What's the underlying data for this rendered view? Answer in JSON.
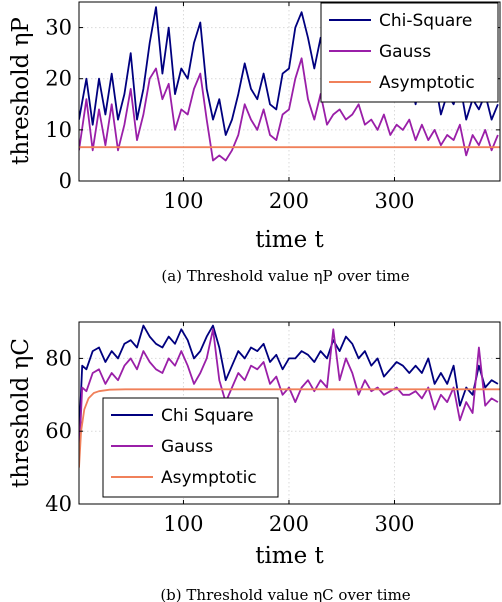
{
  "chart_data": [
    {
      "type": "line",
      "caption": "(a)  Threshold value ηP  over time",
      "xlabel": "time t",
      "ylabel": "threshold ηP",
      "xlim": [
        1,
        400
      ],
      "ylim": [
        0,
        35
      ],
      "xticks": [
        100,
        200,
        300
      ],
      "yticks": [
        0,
        10,
        20,
        30
      ],
      "grid": true,
      "legend_position": "top-right",
      "series": [
        {
          "name": "Chi-Square",
          "color": "#00007f",
          "x": [
            1,
            8,
            14,
            20,
            26,
            32,
            38,
            44,
            50,
            56,
            62,
            68,
            74,
            80,
            86,
            92,
            98,
            104,
            110,
            116,
            122,
            128,
            134,
            140,
            146,
            152,
            158,
            164,
            170,
            176,
            182,
            188,
            194,
            200,
            206,
            212,
            218,
            224,
            230,
            236,
            242,
            248,
            254,
            260,
            266,
            272,
            278,
            284,
            290,
            296,
            302,
            308,
            314,
            320,
            326,
            332,
            338,
            344,
            350,
            356,
            362,
            368,
            374,
            380,
            386,
            392,
            398
          ],
          "y": [
            12,
            20,
            11,
            20,
            13,
            21,
            12,
            17,
            25,
            12,
            18,
            27,
            34,
            21,
            30,
            17,
            22,
            20,
            27,
            31,
            18,
            12,
            16,
            9,
            12,
            17,
            23,
            18,
            16,
            21,
            15,
            14,
            21,
            22,
            30,
            33,
            28,
            22,
            28,
            25,
            28,
            24,
            27,
            22,
            24,
            20,
            24,
            19,
            22,
            17,
            20,
            19,
            21,
            15,
            21,
            16,
            20,
            13,
            17,
            15,
            19,
            12,
            16,
            14,
            17,
            12,
            15
          ]
        },
        {
          "name": "Gauss",
          "color": "#9a1fa8",
          "x": [
            1,
            8,
            14,
            20,
            26,
            32,
            38,
            44,
            50,
            56,
            62,
            68,
            74,
            80,
            86,
            92,
            98,
            104,
            110,
            116,
            122,
            128,
            134,
            140,
            146,
            152,
            158,
            164,
            170,
            176,
            182,
            188,
            194,
            200,
            206,
            212,
            218,
            224,
            230,
            236,
            242,
            248,
            254,
            260,
            266,
            272,
            278,
            284,
            290,
            296,
            302,
            308,
            314,
            320,
            326,
            332,
            338,
            344,
            350,
            356,
            362,
            368,
            374,
            380,
            386,
            392,
            398
          ],
          "y": [
            6,
            16,
            6,
            14,
            7,
            15,
            6,
            11,
            18,
            8,
            13,
            20,
            22,
            16,
            19,
            10,
            14,
            13,
            18,
            21,
            12,
            4,
            5,
            4,
            6,
            9,
            15,
            12,
            10,
            14,
            9,
            8,
            13,
            14,
            20,
            24,
            16,
            12,
            17,
            11,
            13,
            14,
            12,
            13,
            15,
            11,
            12,
            10,
            13,
            9,
            11,
            10,
            12,
            8,
            11,
            8,
            10,
            7,
            9,
            8,
            11,
            5,
            9,
            7,
            10,
            6,
            9
          ]
        },
        {
          "name": "Asymptotic",
          "color": "#f0805a",
          "x": [
            1,
            400
          ],
          "y": [
            6.6,
            6.6
          ]
        }
      ]
    },
    {
      "type": "line",
      "caption": "(b)  Threshold value ηC  over time",
      "xlabel": "time t",
      "ylabel": "threshold ηC",
      "xlim": [
        1,
        400
      ],
      "ylim": [
        40,
        90
      ],
      "xticks": [
        100,
        200,
        300
      ],
      "yticks": [
        40,
        60,
        80
      ],
      "grid": true,
      "legend_position": "bottom-left",
      "series": [
        {
          "name": "Chi Square",
          "color": "#00007f",
          "x": [
            1,
            4,
            8,
            14,
            20,
            26,
            32,
            38,
            44,
            50,
            56,
            62,
            68,
            74,
            80,
            86,
            92,
            98,
            104,
            110,
            116,
            122,
            128,
            134,
            140,
            146,
            152,
            158,
            164,
            170,
            176,
            182,
            188,
            194,
            200,
            206,
            212,
            218,
            224,
            230,
            236,
            242,
            248,
            254,
            260,
            266,
            272,
            278,
            284,
            290,
            296,
            302,
            308,
            314,
            320,
            326,
            332,
            338,
            344,
            350,
            356,
            362,
            368,
            374,
            380,
            386,
            392,
            398
          ],
          "y": [
            58,
            78,
            77,
            82,
            83,
            79,
            82,
            80,
            84,
            85,
            83,
            89,
            86,
            84,
            83,
            86,
            84,
            88,
            85,
            80,
            82,
            86,
            89,
            83,
            74,
            78,
            82,
            80,
            83,
            82,
            84,
            79,
            81,
            77,
            80,
            80,
            82,
            81,
            79,
            82,
            80,
            85,
            82,
            86,
            84,
            80,
            82,
            78,
            80,
            75,
            77,
            79,
            78,
            76,
            78,
            76,
            80,
            73,
            76,
            73,
            78,
            67,
            72,
            70,
            78,
            72,
            74,
            73
          ]
        },
        {
          "name": "Gauss",
          "color": "#9a1fa8",
          "x": [
            1,
            4,
            8,
            14,
            20,
            26,
            32,
            38,
            44,
            50,
            56,
            62,
            68,
            74,
            80,
            86,
            92,
            98,
            104,
            110,
            116,
            122,
            128,
            134,
            140,
            146,
            152,
            158,
            164,
            170,
            176,
            182,
            188,
            194,
            200,
            206,
            212,
            218,
            224,
            230,
            236,
            242,
            248,
            254,
            260,
            266,
            272,
            278,
            284,
            290,
            296,
            302,
            308,
            314,
            320,
            326,
            332,
            338,
            344,
            350,
            356,
            362,
            368,
            374,
            380,
            386,
            392,
            398
          ],
          "y": [
            53,
            72,
            71,
            76,
            77,
            73,
            76,
            74,
            78,
            80,
            77,
            82,
            79,
            77,
            76,
            80,
            78,
            82,
            78,
            73,
            76,
            80,
            88,
            74,
            68,
            72,
            76,
            74,
            78,
            77,
            79,
            73,
            75,
            70,
            72,
            68,
            72,
            74,
            71,
            74,
            72,
            88,
            74,
            80,
            76,
            70,
            74,
            71,
            72,
            70,
            71,
            72,
            70,
            70,
            71,
            69,
            72,
            66,
            70,
            68,
            72,
            63,
            68,
            65,
            83,
            67,
            69,
            68
          ]
        },
        {
          "name": "Asymptotic",
          "color": "#f0805a",
          "x": [
            1,
            3,
            6,
            10,
            15,
            20,
            30,
            45,
            60,
            100,
            200,
            300,
            400
          ],
          "y": [
            50,
            60,
            66,
            69,
            70.5,
            71,
            71.4,
            71.5,
            71.5,
            71.5,
            71.5,
            71.5,
            71.5
          ]
        }
      ]
    }
  ]
}
